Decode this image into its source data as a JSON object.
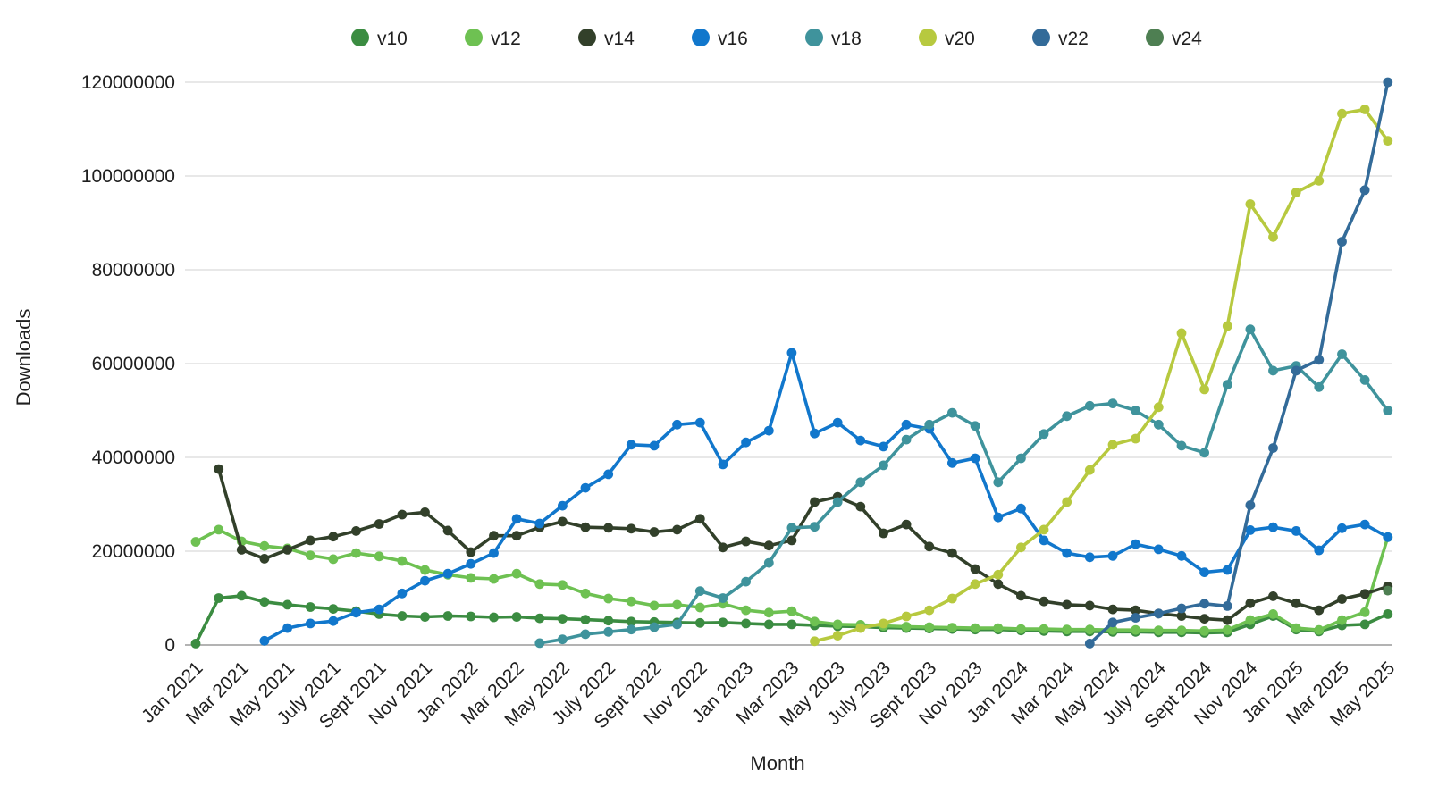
{
  "chart_data": {
    "type": "line",
    "title": "",
    "xlabel": "Month",
    "ylabel": "Downloads",
    "unit": "downloads per month (series values stored in millions)",
    "legend_position": "top",
    "grid": "horizontal",
    "ylim": [
      0,
      120000000
    ],
    "y_ticks": [
      "0",
      "20000000",
      "40000000",
      "60000000",
      "80000000",
      "100000000",
      "120000000"
    ],
    "x_tick_every": 2,
    "x": [
      "Jan 2021",
      "Feb 2021",
      "Mar 2021",
      "Apr 2021",
      "May 2021",
      "Jun 2021",
      "July 2021",
      "Aug 2021",
      "Sept 2021",
      "Oct 2021",
      "Nov 2021",
      "Dec 2021",
      "Jan 2022",
      "Feb 2022",
      "Mar 2022",
      "Apr 2022",
      "May 2022",
      "Jun 2022",
      "July 2022",
      "Aug 2022",
      "Sept 2022",
      "Oct 2022",
      "Nov 2022",
      "Dec 2022",
      "Jan 2023",
      "Feb 2023",
      "Mar 2023",
      "Apr 2023",
      "May 2023",
      "Jun 2023",
      "July 2023",
      "Aug 2023",
      "Sept 2023",
      "Oct 2023",
      "Nov 2023",
      "Dec 2023",
      "Jan 2024",
      "Feb 2024",
      "Mar 2024",
      "Apr 2024",
      "May 2024",
      "Jun 2024",
      "July 2024",
      "Aug 2024",
      "Sept 2024",
      "Oct 2024",
      "Nov 2024",
      "Dec 2024",
      "Jan 2025",
      "Feb 2025",
      "Mar 2025",
      "Apr 2025",
      "May 2025"
    ],
    "series": [
      {
        "name": "v10",
        "color": "#3b8c41",
        "values_millions": [
          0.3,
          10,
          10.5,
          9.2,
          8.6,
          8.1,
          7.7,
          7.2,
          6.6,
          6.2,
          6,
          6.2,
          6.1,
          5.9,
          6,
          5.7,
          5.6,
          5.4,
          5.2,
          5,
          4.9,
          4.8,
          4.7,
          4.8,
          4.6,
          4.4,
          4.4,
          4.2,
          4,
          3.9,
          3.7,
          3.6,
          3.5,
          3.4,
          3.3,
          3.3,
          3.1,
          3,
          2.9,
          2.9,
          2.8,
          2.8,
          2.7,
          2.7,
          2.6,
          2.7,
          4.4,
          6.2,
          3.3,
          2.9,
          4.2,
          4.4,
          6.6
        ]
      },
      {
        "name": "v12",
        "color": "#6ec152",
        "values_millions": [
          22,
          24.6,
          22.1,
          21.1,
          20.6,
          19.1,
          18.3,
          19.6,
          18.9,
          17.9,
          16,
          15,
          14.3,
          14.1,
          15.2,
          13,
          12.8,
          11,
          9.9,
          9.3,
          8.4,
          8.6,
          8,
          8.8,
          7.4,
          6.9,
          7.2,
          5,
          4.4,
          4.3,
          4.1,
          3.9,
          3.8,
          3.7,
          3.6,
          3.6,
          3.4,
          3.4,
          3.3,
          3.3,
          3.2,
          3.2,
          3.1,
          3.1,
          3,
          3.2,
          5.3,
          6.6,
          3.6,
          3.2,
          5.3,
          7,
          23
        ]
      },
      {
        "name": "v14",
        "color": "#32402a",
        "values_millions": [
          null,
          37.5,
          20.3,
          18.4,
          20.3,
          22.3,
          23.1,
          24.3,
          25.8,
          27.8,
          28.3,
          24.4,
          19.8,
          23.3,
          23.3,
          25.1,
          26.3,
          25.1,
          25,
          24.8,
          24.1,
          24.6,
          26.9,
          20.8,
          22.1,
          21.2,
          22.3,
          30.5,
          31.6,
          29.5,
          23.8,
          25.7,
          21,
          19.6,
          16.2,
          13,
          10.5,
          9.3,
          8.6,
          8.4,
          7.6,
          7.4,
          6.7,
          6.2,
          5.6,
          5.3,
          8.9,
          10.4,
          8.9,
          7.4,
          9.8,
          10.9,
          12.5
        ]
      },
      {
        "name": "v16",
        "color": "#1177cc",
        "values_millions": [
          null,
          null,
          null,
          0.9,
          3.6,
          4.6,
          5.1,
          6.9,
          7.6,
          11,
          13.7,
          15.2,
          17.3,
          19.6,
          26.9,
          25.9,
          29.7,
          33.5,
          36.4,
          42.7,
          42.5,
          47,
          47.4,
          38.5,
          43.2,
          45.7,
          62.3,
          45.1,
          47.4,
          43.6,
          42.3,
          47,
          46.1,
          38.8,
          39.8,
          27.2,
          29.1,
          22.3,
          19.6,
          18.7,
          19,
          21.5,
          20.4,
          19,
          15.5,
          16,
          24.5,
          25.1,
          24.3,
          20.2,
          24.9,
          25.7,
          23
        ]
      },
      {
        "name": "v18",
        "color": "#3f939c",
        "values_millions": [
          null,
          null,
          null,
          null,
          null,
          null,
          null,
          null,
          null,
          null,
          null,
          null,
          null,
          null,
          null,
          0.4,
          1.2,
          2.3,
          2.8,
          3.3,
          3.8,
          4.4,
          11.5,
          10,
          13.5,
          17.5,
          25,
          25.2,
          30.5,
          34.7,
          38.3,
          43.8,
          47,
          49.5,
          46.7,
          34.7,
          39.8,
          45,
          48.8,
          51,
          51.5,
          50,
          47,
          42.5,
          41,
          55.5,
          67.3,
          58.5,
          59.5,
          55,
          62,
          56.5,
          50
        ]
      },
      {
        "name": "v20",
        "color": "#b7c93f",
        "values_millions": [
          null,
          null,
          null,
          null,
          null,
          null,
          null,
          null,
          null,
          null,
          null,
          null,
          null,
          null,
          null,
          null,
          null,
          null,
          null,
          null,
          null,
          null,
          null,
          null,
          null,
          null,
          null,
          0.8,
          2,
          3.6,
          4.6,
          6.1,
          7.4,
          9.9,
          13,
          15,
          20.8,
          24.6,
          30.5,
          37.3,
          42.7,
          44,
          50.7,
          66.5,
          54.5,
          68,
          94,
          87,
          96.5,
          99,
          113.3,
          114.2,
          107.5
        ]
      },
      {
        "name": "v22",
        "color": "#336b99",
        "values_millions": [
          null,
          null,
          null,
          null,
          null,
          null,
          null,
          null,
          null,
          null,
          null,
          null,
          null,
          null,
          null,
          null,
          null,
          null,
          null,
          null,
          null,
          null,
          null,
          null,
          null,
          null,
          null,
          null,
          null,
          null,
          null,
          null,
          null,
          null,
          null,
          null,
          null,
          null,
          null,
          0.3,
          4.8,
          5.8,
          6.7,
          7.8,
          8.8,
          8.3,
          29.8,
          42,
          58.5,
          60.8,
          86,
          97,
          120
        ]
      },
      {
        "name": "v24",
        "color": "#4e7f52",
        "values_millions": [
          null,
          null,
          null,
          null,
          null,
          null,
          null,
          null,
          null,
          null,
          null,
          null,
          null,
          null,
          null,
          null,
          null,
          null,
          null,
          null,
          null,
          null,
          null,
          null,
          null,
          null,
          null,
          null,
          null,
          null,
          null,
          null,
          null,
          null,
          null,
          null,
          null,
          null,
          null,
          null,
          null,
          null,
          null,
          null,
          null,
          null,
          null,
          null,
          null,
          null,
          null,
          null,
          11.6
        ]
      }
    ]
  },
  "colors": {
    "background": "#ffffff",
    "gridline": "#d9d9d9",
    "axis_line": "#9a9a9a",
    "text": "#1f1f1f"
  }
}
